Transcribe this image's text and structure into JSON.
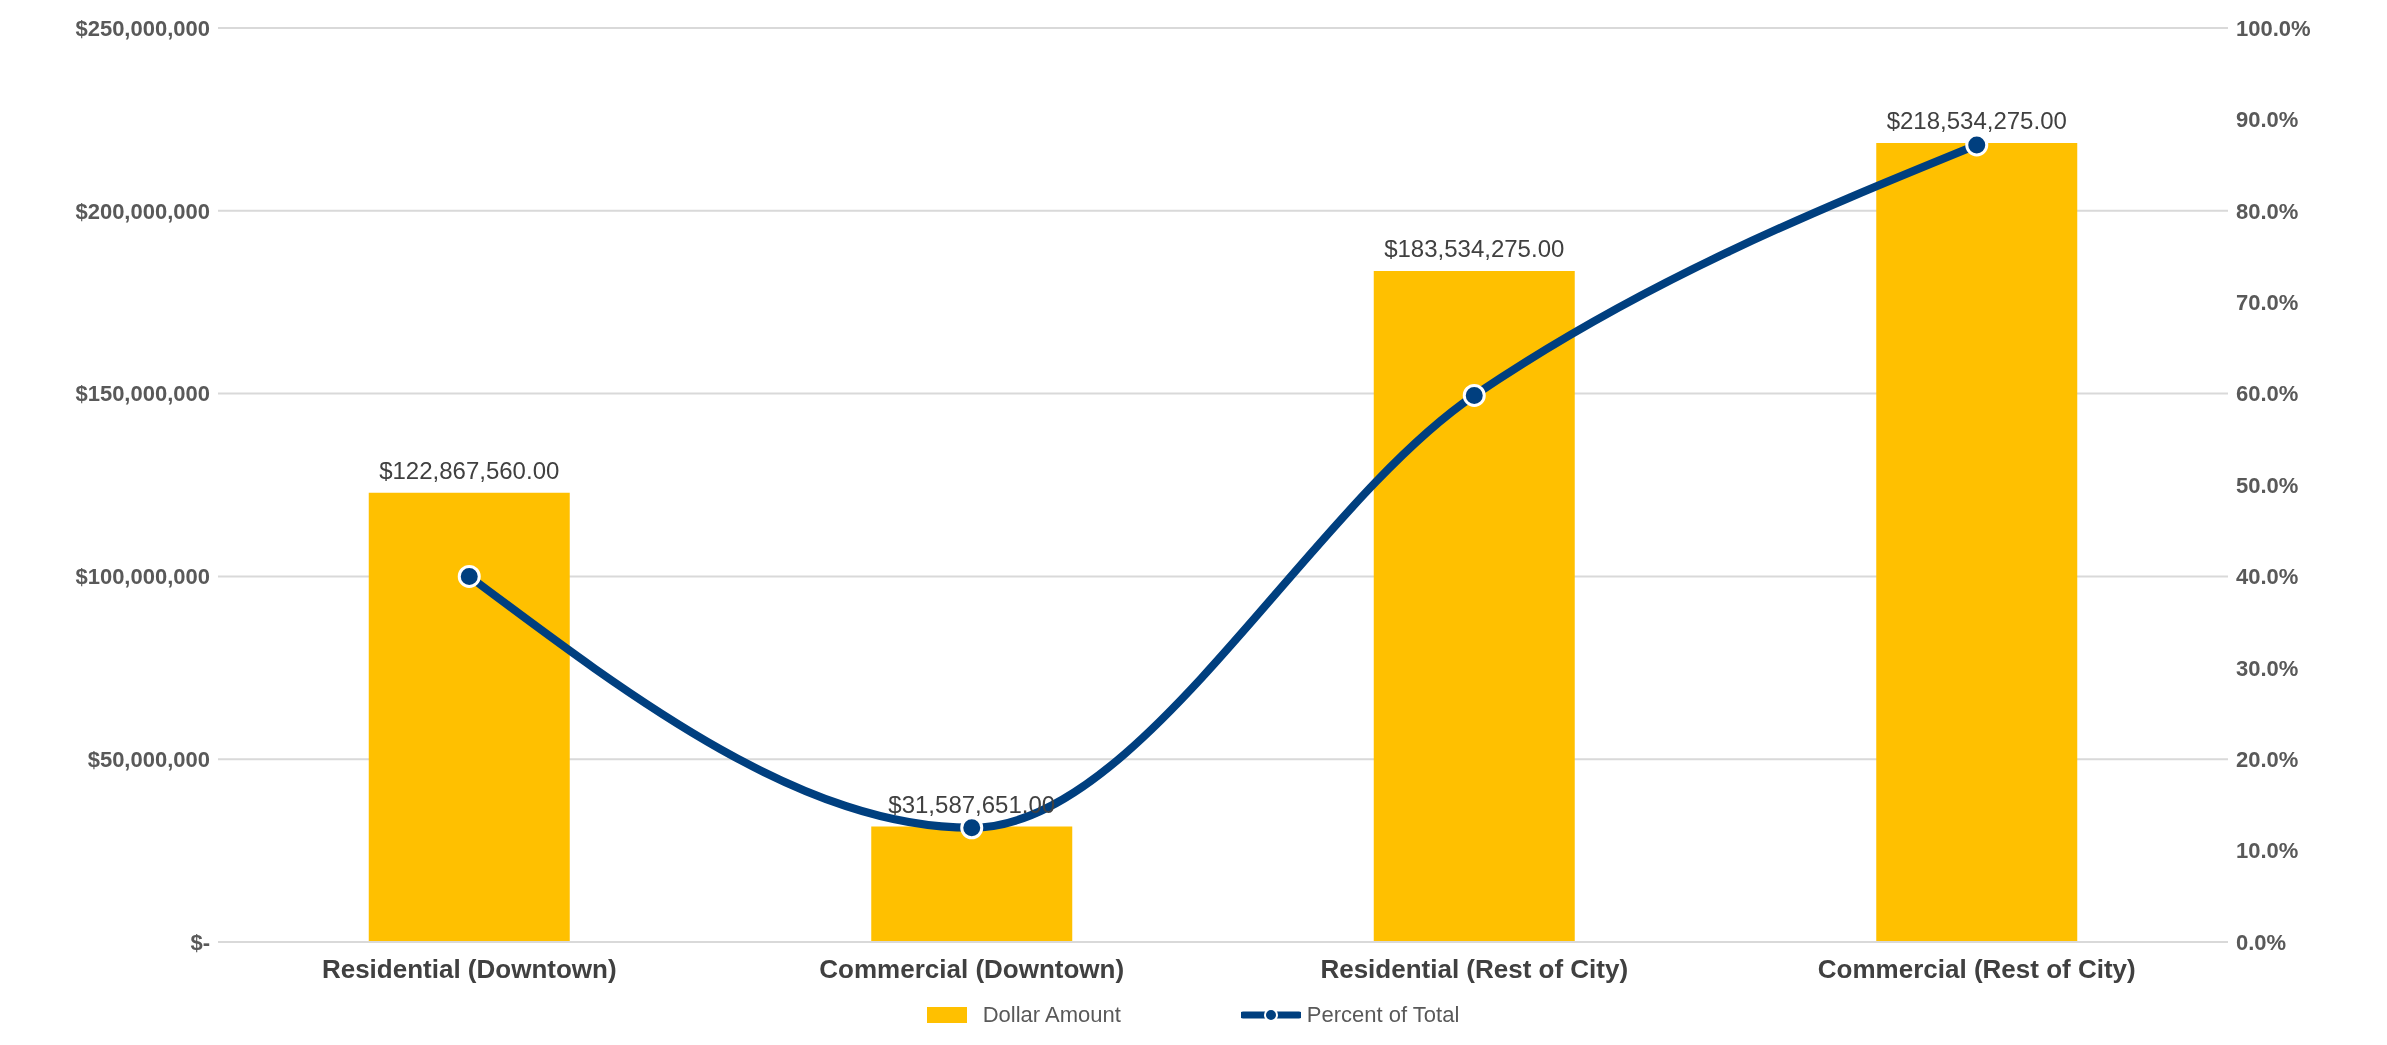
{
  "chart_data": {
    "type": "bar",
    "categories": [
      "Residential (Downtown)",
      "Commercial (Downtown)",
      "Residential (Rest of City)",
      "Commercial (Rest of City)"
    ],
    "series": [
      {
        "name": "Dollar Amount",
        "color": "#ffc000",
        "values": [
          122867560,
          31587651,
          183534275,
          218534275
        ],
        "value_labels": [
          "$122,867,560.00",
          "$31,587,651.00",
          "$183,534,275.00",
          "$218,534,275.00"
        ]
      },
      {
        "name": "Percent of Total",
        "type": "line",
        "axis": "y2",
        "color": "#003f7f",
        "values": [
          40.0,
          12.5,
          59.8,
          87.2
        ]
      }
    ],
    "ylim": [
      0,
      250000000
    ],
    "yticks": [
      {
        "value": 0,
        "label": "$-"
      },
      {
        "value": 50000000,
        "label": "$50,000,000"
      },
      {
        "value": 100000000,
        "label": "$100,000,000"
      },
      {
        "value": 150000000,
        "label": "$150,000,000"
      },
      {
        "value": 200000000,
        "label": "$200,000,000"
      },
      {
        "value": 250000000,
        "label": "$250,000,000"
      }
    ],
    "y2lim": [
      0,
      100
    ],
    "y2ticks": [
      {
        "value": 0,
        "label": "0.0%"
      },
      {
        "value": 10,
        "label": "10.0%"
      },
      {
        "value": 20,
        "label": "20.0%"
      },
      {
        "value": 30,
        "label": "30.0%"
      },
      {
        "value": 40,
        "label": "40.0%"
      },
      {
        "value": 50,
        "label": "50.0%"
      },
      {
        "value": 60,
        "label": "60.0%"
      },
      {
        "value": 70,
        "label": "70.0%"
      },
      {
        "value": 80,
        "label": "80.0%"
      },
      {
        "value": 90,
        "label": "90.0%"
      },
      {
        "value": 100,
        "label": "100.0%"
      }
    ],
    "grid": "y",
    "legend": "bottom",
    "marker": "circle",
    "line_style": "solid"
  }
}
